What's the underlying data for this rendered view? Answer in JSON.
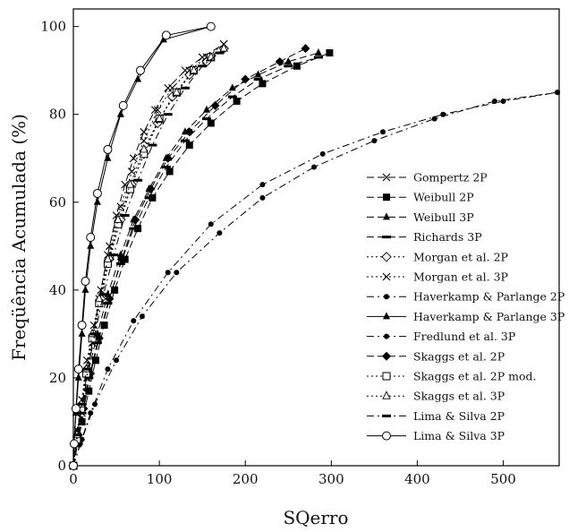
{
  "chart_data": {
    "type": "line",
    "title": "",
    "xlabel": "SQerro",
    "ylabel": "Freqüência Acumulada (%)",
    "xlim": [
      0,
      565
    ],
    "ylim": [
      0,
      104
    ],
    "xticks": [
      "0",
      "100",
      "200",
      "300",
      "400",
      "500"
    ],
    "yticks": [
      "0",
      "20",
      "40",
      "60",
      "80",
      "100"
    ],
    "grid": false,
    "legend_position": "right-center",
    "series": [
      {
        "name": "Gompertz 2P",
        "marker": "x",
        "dash": "8,4",
        "x": [
          0,
          5,
          10,
          16,
          22,
          30,
          40,
          50,
          60,
          70,
          82,
          95,
          110,
          130,
          150,
          175
        ],
        "y": [
          0,
          6,
          12,
          20,
          28,
          38,
          48,
          57,
          64,
          70,
          76,
          81,
          86,
          90,
          93,
          96
        ]
      },
      {
        "name": "Weibull 2P",
        "marker": "square",
        "dash": "8,4",
        "x": [
          0,
          5,
          10,
          18,
          26,
          36,
          48,
          60,
          75,
          92,
          112,
          135,
          160,
          190,
          220,
          260,
          298
        ],
        "y": [
          0,
          5,
          10,
          17,
          24,
          32,
          40,
          47,
          54,
          61,
          67,
          73,
          78,
          83,
          87,
          91,
          94
        ]
      },
      {
        "name": "Weibull 3P",
        "marker": "triangle",
        "dash": "8,4",
        "x": [
          0,
          5,
          10,
          18,
          28,
          40,
          55,
          70,
          88,
          108,
          130,
          155,
          185,
          215,
          250,
          285
        ],
        "y": [
          0,
          8,
          14,
          22,
          30,
          39,
          48,
          56,
          63,
          70,
          76,
          81,
          86,
          89,
          92,
          94
        ]
      },
      {
        "name": "Richards 3P",
        "marker": "bar",
        "dash": "8,4",
        "x": [
          0,
          5,
          10,
          18,
          28,
          40,
          55,
          70,
          88,
          108,
          130,
          155,
          185,
          215,
          250,
          285
        ],
        "y": [
          0,
          6,
          12,
          20,
          28,
          37,
          46,
          54,
          61,
          68,
          74,
          79,
          84,
          88,
          91,
          93
        ]
      },
      {
        "name": "Morgan et al. 2P",
        "marker": "diamond-open",
        "dash": "2,3",
        "x": [
          0,
          5,
          10,
          16,
          24,
          32,
          42,
          55,
          68,
          82,
          98,
          115,
          135,
          155,
          175
        ],
        "y": [
          0,
          7,
          14,
          22,
          30,
          38,
          47,
          56,
          64,
          71,
          78,
          84,
          89,
          92,
          95
        ]
      },
      {
        "name": "Morgan et al. 3P",
        "marker": "x",
        "dash": "2,3",
        "x": [
          0,
          5,
          10,
          16,
          24,
          32,
          42,
          55,
          68,
          82,
          98,
          115,
          135,
          155,
          175
        ],
        "y": [
          0,
          8,
          15,
          24,
          32,
          40,
          50,
          59,
          67,
          74,
          81,
          86,
          90,
          93,
          96
        ]
      },
      {
        "name": "Haverkamp & Parlange 2P",
        "marker": "dot",
        "dash": "8,4,2,4",
        "x": [
          0,
          8,
          20,
          40,
          70,
          110,
          160,
          220,
          290,
          360,
          430,
          500,
          563
        ],
        "y": [
          0,
          5,
          12,
          22,
          33,
          44,
          55,
          64,
          71,
          76,
          80,
          83,
          85
        ]
      },
      {
        "name": "Haverkamp & Parlange 3P",
        "marker": "triangle",
        "dash": "",
        "x": [
          0,
          1,
          3,
          6,
          10,
          14,
          20,
          28,
          40,
          55,
          75,
          105,
          160
        ],
        "y": [
          0,
          5,
          12,
          20,
          30,
          40,
          50,
          60,
          70,
          80,
          88,
          97,
          100
        ]
      },
      {
        "name": "Fredlund et al. 3P",
        "marker": "dot",
        "dash": "8,4,2,4",
        "x": [
          0,
          10,
          25,
          50,
          80,
          120,
          170,
          220,
          280,
          350,
          420,
          490,
          563
        ],
        "y": [
          0,
          6,
          14,
          24,
          34,
          44,
          53,
          61,
          68,
          74,
          79,
          83,
          85
        ]
      },
      {
        "name": "Skaggs et al. 2P",
        "marker": "diamond",
        "dash": "8,4",
        "x": [
          0,
          5,
          12,
          20,
          30,
          42,
          56,
          72,
          90,
          110,
          135,
          165,
          200,
          240,
          270
        ],
        "y": [
          0,
          6,
          13,
          21,
          29,
          38,
          47,
          56,
          63,
          70,
          76,
          82,
          88,
          92,
          95
        ]
      },
      {
        "name": "Skaggs et al. 2P mod.",
        "marker": "square-open",
        "dash": "2,3",
        "x": [
          0,
          4,
          9,
          15,
          22,
          30,
          40,
          52,
          66,
          82,
          100,
          120,
          140,
          160
        ],
        "y": [
          0,
          6,
          13,
          21,
          29,
          37,
          46,
          55,
          63,
          71,
          79,
          85,
          90,
          93
        ]
      },
      {
        "name": "Skaggs et al. 3P",
        "marker": "triangle-open",
        "dash": "2,3",
        "x": [
          0,
          4,
          9,
          15,
          22,
          30,
          40,
          52,
          66,
          82,
          100,
          120,
          140,
          160,
          175
        ],
        "y": [
          0,
          7,
          14,
          22,
          30,
          38,
          47,
          56,
          64,
          72,
          79,
          85,
          90,
          93,
          95
        ]
      },
      {
        "name": "Lima & Silva 2P",
        "marker": "bar",
        "dash": "8,4,2,4",
        "x": [
          0,
          5,
          10,
          17,
          25,
          35,
          47,
          60,
          75,
          92,
          110,
          130,
          150,
          170
        ],
        "y": [
          0,
          7,
          14,
          22,
          30,
          39,
          48,
          57,
          65,
          73,
          80,
          86,
          91,
          94
        ]
      },
      {
        "name": "Lima & Silva 3P",
        "marker": "circle-open",
        "dash": "",
        "x": [
          0,
          1,
          3,
          6,
          10,
          14,
          20,
          28,
          40,
          58,
          78,
          108,
          160
        ],
        "y": [
          0,
          5,
          13,
          22,
          32,
          42,
          52,
          62,
          72,
          82,
          90,
          98,
          100
        ]
      }
    ]
  }
}
